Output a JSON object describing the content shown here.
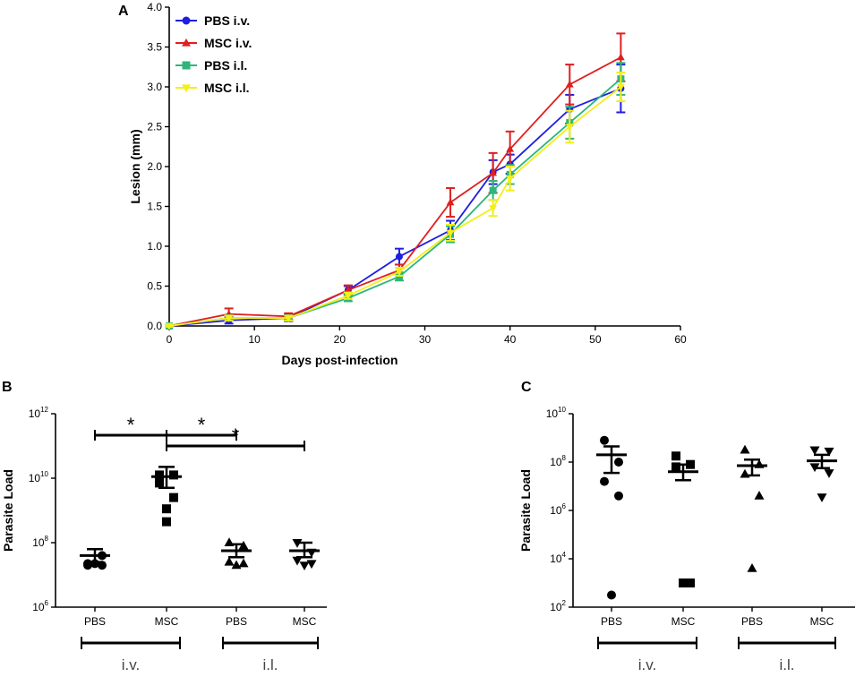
{
  "colors": {
    "pbs_iv": "#1f1fe0",
    "msc_iv": "#e01f1f",
    "pbs_il": "#2fb57a",
    "msc_il": "#f2ef1a",
    "axis": "#000000",
    "group_text": "#444444"
  },
  "chart_data": [
    {
      "panel": "A",
      "type": "line",
      "xlabel": "Days post-infection",
      "ylabel": "Lesion (mm)",
      "xlim": [
        0,
        60
      ],
      "ylim": [
        0.0,
        4.0
      ],
      "xticks": [
        "0",
        "10",
        "20",
        "30",
        "40",
        "50",
        "60"
      ],
      "yticks": [
        "0.0",
        "0.5",
        "1.0",
        "1.5",
        "2.0",
        "2.5",
        "3.0",
        "3.5",
        "4.0"
      ],
      "legend_position": "top-left",
      "x": [
        0,
        7,
        14,
        21,
        27,
        33,
        38,
        40,
        47,
        53
      ],
      "series": [
        {
          "name": "PBS i.v.",
          "color_key": "pbs_iv",
          "marker": "circle",
          "values": [
            0.0,
            0.07,
            0.1,
            0.45,
            0.87,
            1.2,
            1.93,
            2.03,
            2.72,
            2.98
          ],
          "errors": [
            0.01,
            0.04,
            0.04,
            0.05,
            0.1,
            0.12,
            0.15,
            0.12,
            0.18,
            0.3
          ]
        },
        {
          "name": "MSC i.v.",
          "color_key": "msc_iv",
          "marker": "triangle-up",
          "values": [
            0.0,
            0.15,
            0.12,
            0.45,
            0.7,
            1.55,
            1.92,
            2.22,
            3.03,
            3.37
          ],
          "errors": [
            0.01,
            0.07,
            0.04,
            0.06,
            0.07,
            0.18,
            0.25,
            0.22,
            0.25,
            0.3
          ]
        },
        {
          "name": "PBS i.l.",
          "color_key": "pbs_il",
          "marker": "square",
          "values": [
            0.0,
            0.1,
            0.1,
            0.35,
            0.62,
            1.15,
            1.7,
            1.9,
            2.55,
            3.1
          ],
          "errors": [
            0.01,
            0.03,
            0.03,
            0.04,
            0.05,
            0.1,
            0.12,
            0.12,
            0.2,
            0.2
          ]
        },
        {
          "name": "MSC i.l.",
          "color_key": "msc_il",
          "marker": "triangle-down",
          "values": [
            0.0,
            0.1,
            0.1,
            0.38,
            0.68,
            1.17,
            1.48,
            1.85,
            2.5,
            3.0
          ],
          "errors": [
            0.01,
            0.03,
            0.03,
            0.04,
            0.05,
            0.1,
            0.1,
            0.15,
            0.2,
            0.18
          ]
        }
      ]
    },
    {
      "panel": "B",
      "type": "scatter",
      "ylabel": "Parasite Load",
      "yscale": "log10",
      "ylim_exp": [
        6,
        12
      ],
      "ytick_exps": [
        "6",
        "8",
        "10",
        "12"
      ],
      "ytick_base": "10",
      "categories": [
        "PBS",
        "MSC",
        "PBS",
        "MSC"
      ],
      "groups": [
        {
          "label": "i.v.",
          "members": [
            0,
            1
          ]
        },
        {
          "label": "i.l.",
          "members": [
            2,
            3
          ]
        }
      ],
      "significance": [
        {
          "from": 0,
          "to": 1,
          "label": "*"
        },
        {
          "from": 1,
          "to": 2,
          "label": "*"
        },
        {
          "from": 1,
          "to": 3,
          "label": "*"
        }
      ],
      "series": [
        {
          "marker": "circle",
          "points_log10": [
            7.3,
            7.6,
            7.35,
            7.3,
            7.35
          ],
          "mean_log10": 7.6,
          "sem_log10": [
            7.4,
            7.8
          ]
        },
        {
          "marker": "square",
          "points_log10": [
            10.1,
            10.1,
            9.85,
            9.4,
            9.05,
            8.65
          ],
          "mean_log10": 10.05,
          "sem_log10": [
            9.7,
            10.35
          ]
        },
        {
          "marker": "triangle-up",
          "points_log10": [
            8.0,
            7.9,
            7.4,
            7.35,
            7.3
          ],
          "mean_log10": 7.75,
          "sem_log10": [
            7.55,
            7.95
          ]
        },
        {
          "marker": "triangle-down",
          "points_log10": [
            8.0,
            7.7,
            7.45,
            7.35,
            7.3
          ],
          "mean_log10": 7.75,
          "sem_log10": [
            7.55,
            8.0
          ]
        }
      ]
    },
    {
      "panel": "C",
      "type": "scatter",
      "ylabel": "Parasite Load",
      "yscale": "log10",
      "ylim_exp": [
        2,
        10
      ],
      "ytick_exps": [
        "2",
        "4",
        "6",
        "8",
        "10"
      ],
      "ytick_base": "10",
      "categories": [
        "PBS",
        "MSC",
        "PBS",
        "MSC"
      ],
      "groups": [
        {
          "label": "i.v.",
          "members": [
            0,
            1
          ]
        },
        {
          "label": "i.l.",
          "members": [
            2,
            3
          ]
        }
      ],
      "series": [
        {
          "marker": "circle",
          "points_log10": [
            8.9,
            8.0,
            7.2,
            6.6,
            2.5
          ],
          "mean_log10": 8.3,
          "sem_log10": [
            7.55,
            8.65
          ]
        },
        {
          "marker": "square",
          "points_log10": [
            8.25,
            7.9,
            7.8,
            3.0,
            3.0
          ],
          "mean_log10": 7.6,
          "sem_log10": [
            7.25,
            7.9
          ]
        },
        {
          "marker": "triangle-up",
          "points_log10": [
            8.5,
            7.9,
            7.5,
            6.6,
            3.6
          ],
          "mean_log10": 7.85,
          "sem_log10": [
            7.45,
            8.1
          ]
        },
        {
          "marker": "triangle-down",
          "points_log10": [
            8.5,
            8.45,
            7.8,
            7.55,
            6.55
          ],
          "mean_log10": 8.05,
          "sem_log10": [
            7.75,
            8.3
          ]
        }
      ]
    }
  ],
  "labels": {
    "panel_a": "A",
    "panel_b": "B",
    "panel_c": "C"
  }
}
